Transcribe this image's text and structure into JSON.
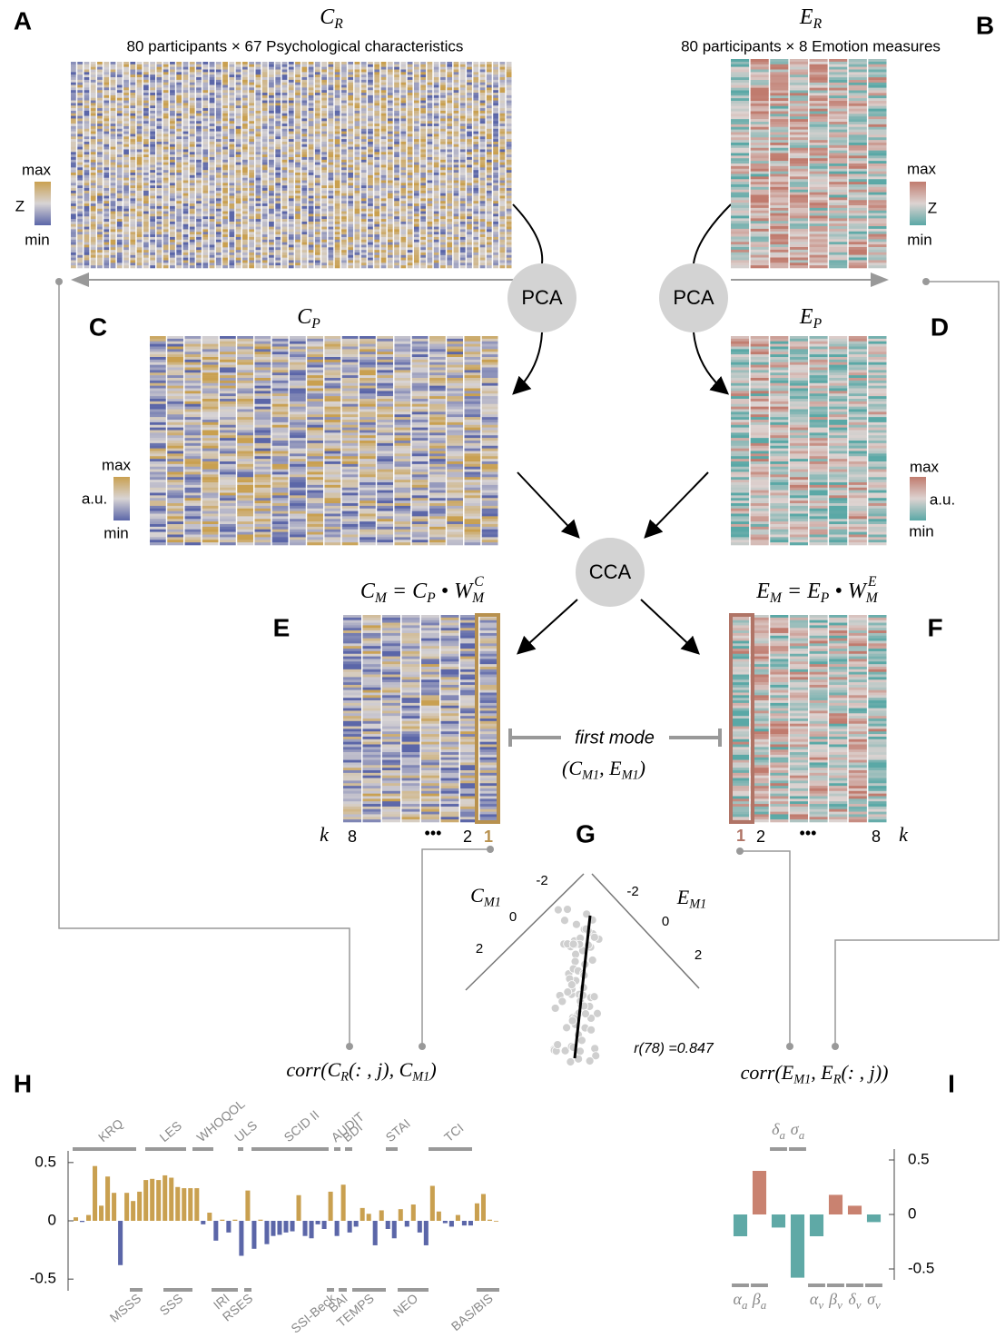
{
  "panel_letters": [
    "A",
    "B",
    "C",
    "D",
    "E",
    "F",
    "G",
    "H",
    "I"
  ],
  "c_r": {
    "title": [
      {
        "t": "C",
        "sub": "R"
      }
    ],
    "subtitle": "80 participants × 67 Psychological characteristics"
  },
  "e_r": {
    "title": [
      {
        "t": "E",
        "sub": "R"
      }
    ],
    "subtitle": "80 participants × 8 Emotion measures"
  },
  "c_p_title": [
    {
      "t": "C",
      "sub": "P"
    }
  ],
  "e_p_title": [
    {
      "t": "E",
      "sub": "P"
    }
  ],
  "c_m_eq": [
    {
      "t": "C",
      "sub": "M"
    },
    {
      "t": " = "
    },
    {
      "t": "C",
      "sub": "P"
    },
    {
      "t": " • "
    },
    {
      "t": "W",
      "sub": "M",
      "sup": "C"
    }
  ],
  "e_m_eq": [
    {
      "t": "E",
      "sub": "M"
    },
    {
      "t": " = "
    },
    {
      "t": "E",
      "sub": "P"
    },
    {
      "t": " • "
    },
    {
      "t": "W",
      "sub": "M",
      "sup": "E"
    }
  ],
  "nodes": {
    "pca_left": "PCA",
    "pca_right": "PCA",
    "cca": "CCA"
  },
  "colorbars": {
    "a": {
      "max": "max",
      "unit": "Z",
      "min": "min"
    },
    "b": {
      "max": "max",
      "unit": "Z",
      "min": "min"
    },
    "c": {
      "max": "max",
      "unit": "a.u.",
      "min": "min"
    },
    "d": {
      "max": "max",
      "unit": "a.u.",
      "min": "min"
    }
  },
  "first_mode": {
    "label": "first mode",
    "pair": [
      {
        "t": "("
      },
      {
        "t": "C",
        "sub": "M1"
      },
      {
        "t": ", "
      },
      {
        "t": "E",
        "sub": "M1"
      },
      {
        "t": ")"
      }
    ]
  },
  "k_left": {
    "k": "k",
    "last": "8",
    "dots": "•••",
    "second": "2",
    "first": "1"
  },
  "k_right": {
    "first": "1",
    "second": "2",
    "dots": "•••",
    "last": "8",
    "k": "k"
  },
  "corr_c": [
    {
      "t": "corr"
    },
    {
      "t": "(C",
      "sub": "R"
    },
    {
      "t": "(: , j), C",
      "sub": "M1"
    },
    {
      "t": ")"
    }
  ],
  "corr_e": [
    {
      "t": "corr"
    },
    {
      "t": "(E",
      "sub": "M1"
    },
    {
      "t": ", E",
      "sub": "R"
    },
    {
      "t": "(: , j))"
    }
  ],
  "g_panel": {
    "left_label": [
      {
        "t": "C",
        "sub": "M1"
      }
    ],
    "right_label": [
      {
        "t": "E",
        "sub": "M1"
      }
    ],
    "left_ticks": [
      -2,
      0,
      2
    ],
    "right_ticks": [
      -2,
      0,
      2
    ],
    "r_text": "r(78) =0.847"
  },
  "chart_data": [
    {
      "type": "bar",
      "values": [
        0.03,
        -0.01,
        0.05,
        0.47,
        0.13,
        0.38,
        0.24,
        -0.38,
        0.24,
        0.17,
        0.25,
        0.35,
        0.36,
        0.35,
        0.39,
        0.37,
        0.29,
        0.28,
        0.28,
        0.28,
        -0.03,
        0.07,
        -0.17,
        0.01,
        -0.1,
        0.01,
        -0.3,
        0.26,
        -0.24,
        0.01,
        -0.2,
        -0.13,
        -0.12,
        -0.1,
        -0.09,
        0.22,
        -0.13,
        -0.15,
        -0.03,
        -0.07,
        0.25,
        -0.13,
        0.31,
        -0.1,
        -0.05,
        0.11,
        0.06,
        -0.21,
        0.09,
        -0.07,
        -0.15,
        0.1,
        -0.05,
        0.14,
        -0.1,
        -0.21,
        0.3,
        0.08,
        -0.02,
        -0.05,
        0.05,
        -0.04,
        -0.04,
        0.15,
        0.23,
        0.01,
        0.0
      ],
      "positive_color": "#c9a050",
      "negative_color": "#5b66a8",
      "ylim": [
        -0.6,
        0.6
      ],
      "yticks": [
        0.5,
        0,
        -0.5
      ],
      "groups_top": [
        "KRQ",
        "LES",
        "WHOQOL",
        "ULS",
        "SCID II",
        "AUDIT",
        "BDI",
        "STAI",
        "TCI"
      ],
      "groups_bottom": [
        "MSSS",
        "SSS",
        "IRI",
        "RSES",
        "SSI-Beck",
        "BAI",
        "TEMPS",
        "NEO",
        "BAS/BIS"
      ]
    },
    {
      "type": "bar",
      "categories": [
        {
          "t": "α",
          "sub": "a"
        },
        {
          "t": "β",
          "sub": "a"
        },
        {
          "t": "δ",
          "sub": "a"
        },
        {
          "t": "σ",
          "sub": "a"
        },
        {
          "t": "α",
          "sub": "v"
        },
        {
          "t": "β",
          "sub": "v"
        },
        {
          "t": "δ",
          "sub": "v"
        },
        {
          "t": "σ",
          "sub": "v"
        }
      ],
      "values": [
        -0.2,
        0.4,
        -0.12,
        -0.58,
        -0.2,
        0.18,
        0.08,
        -0.07
      ],
      "positive_color": "#c98270",
      "negative_color": "#5fa9a6",
      "ylim": [
        -0.6,
        0.6
      ],
      "yticks": [
        0.5,
        0,
        -0.5
      ]
    }
  ]
}
